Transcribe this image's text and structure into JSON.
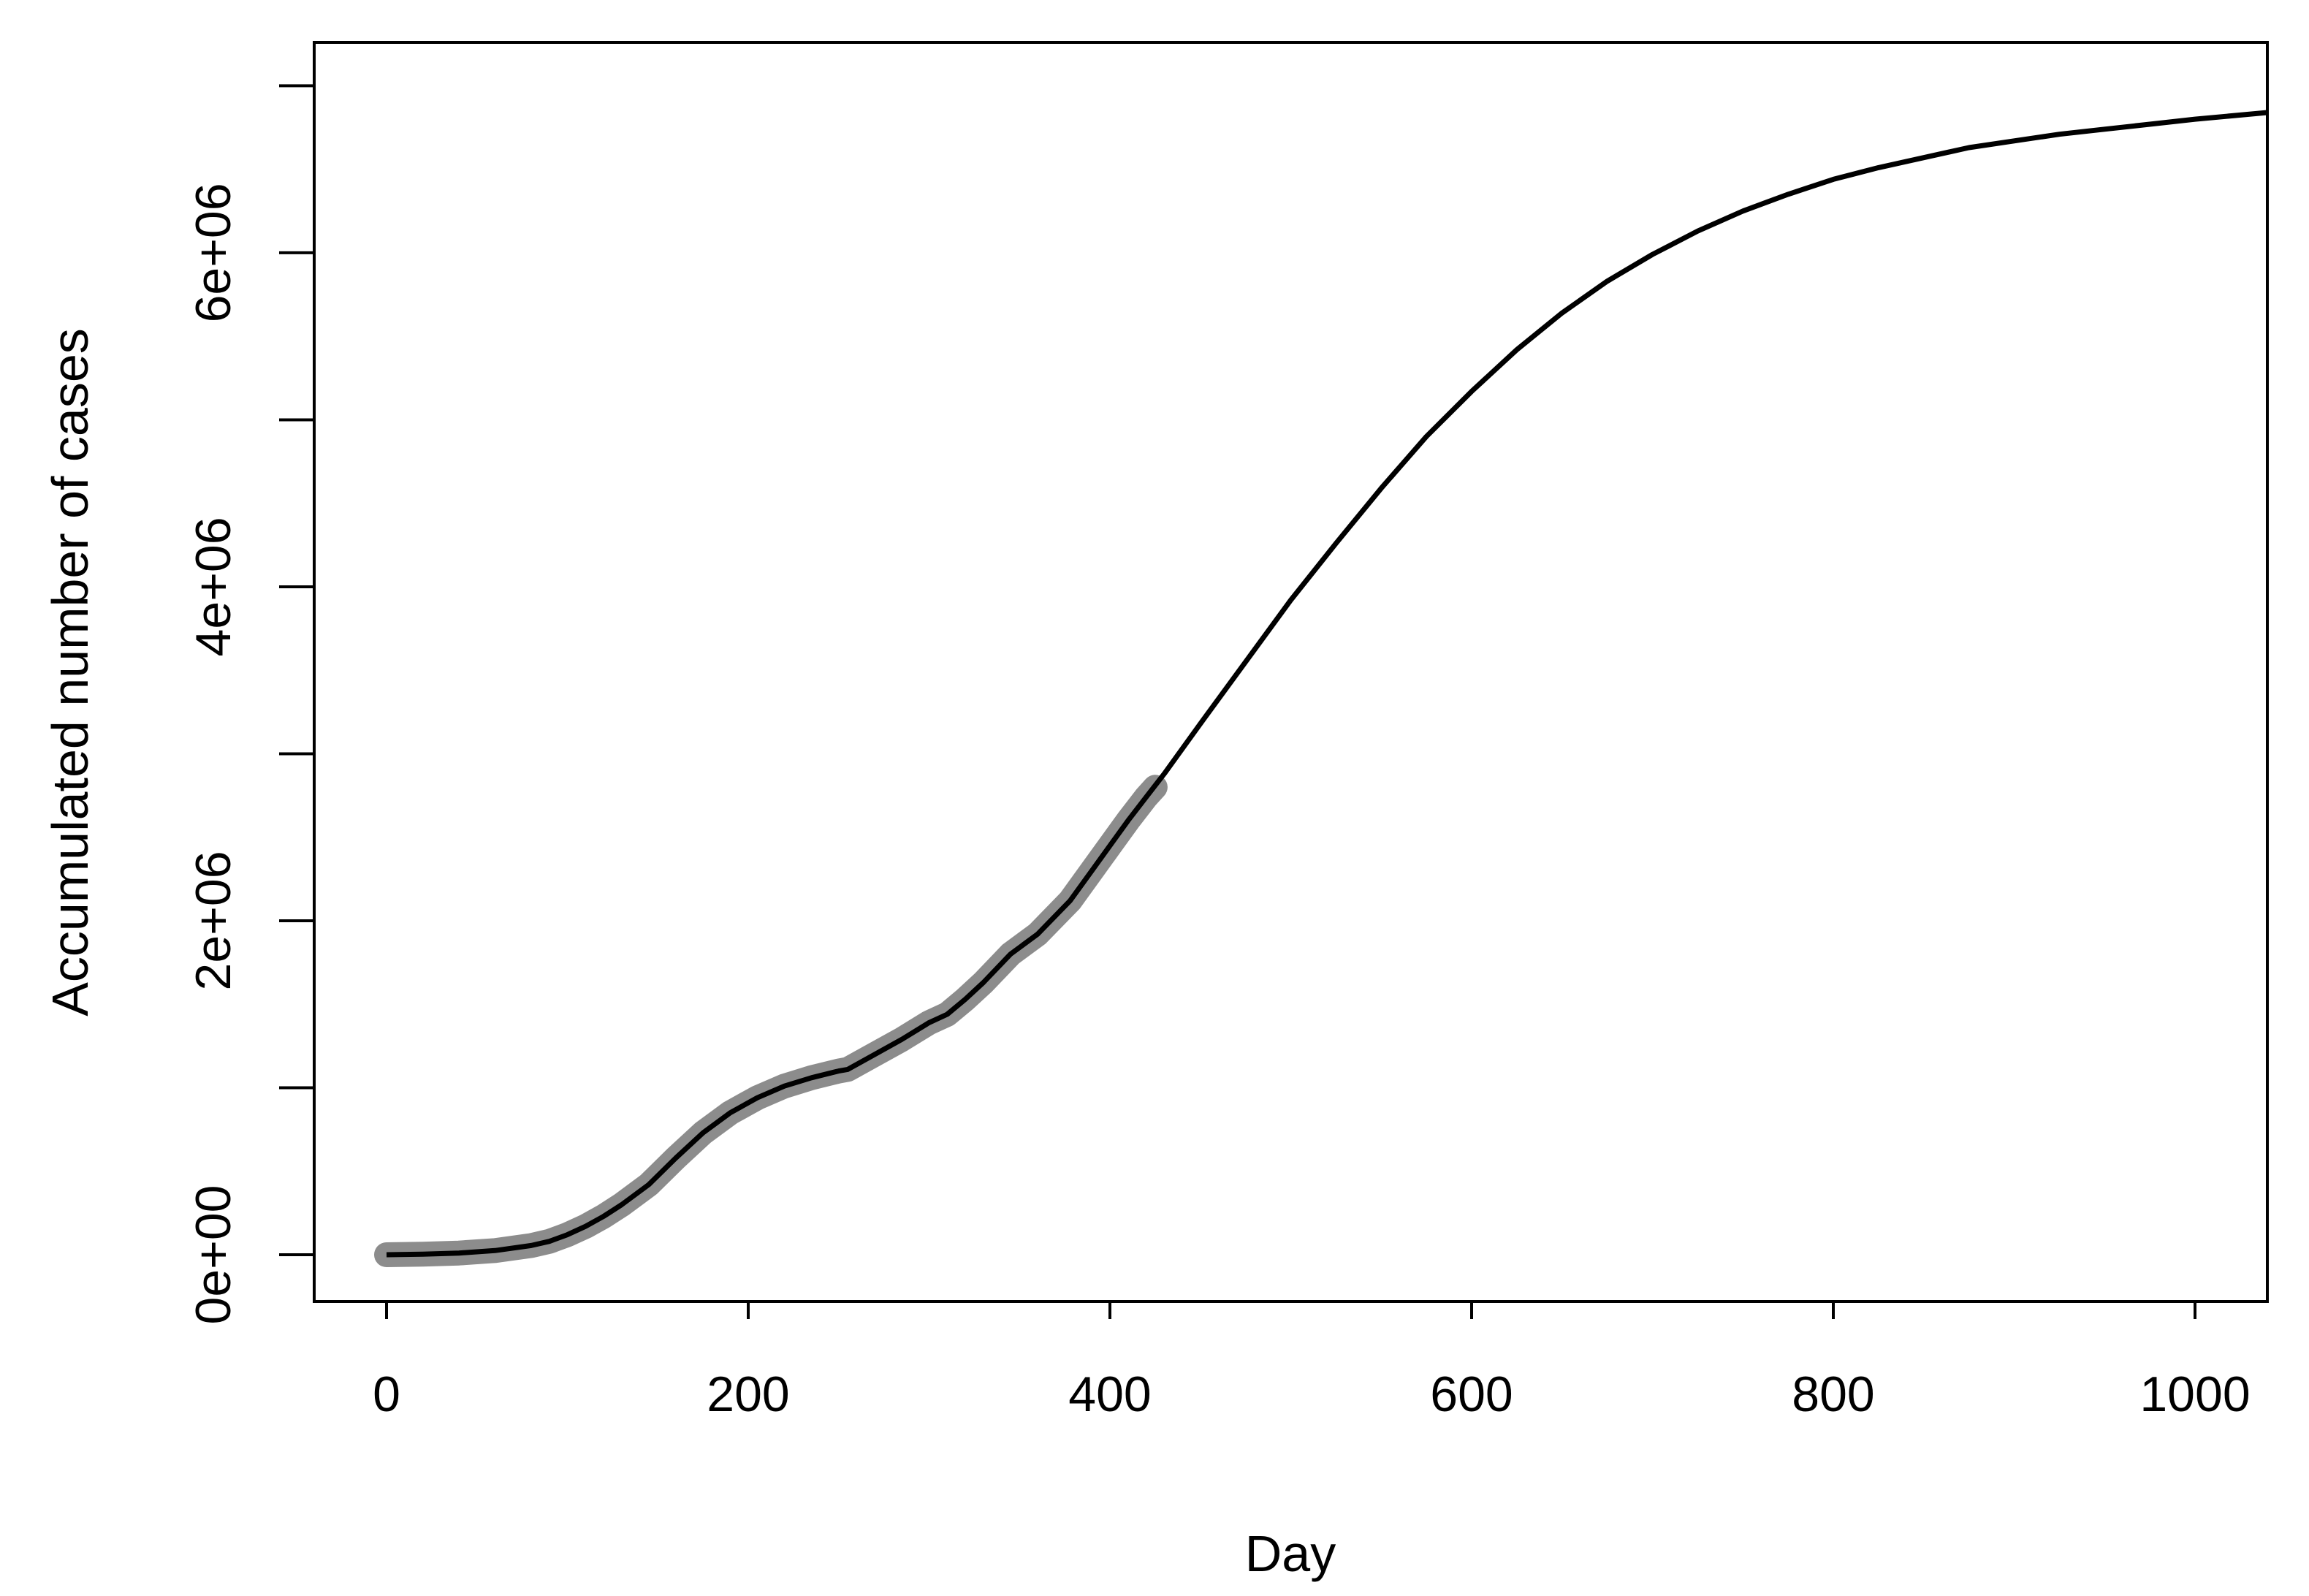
{
  "chart_data": {
    "type": "line",
    "title": "",
    "xlabel": "Day",
    "ylabel": "Accumulated number of cases",
    "xlim": [
      -40,
      1040
    ],
    "ylim": [
      -280000,
      7260000
    ],
    "x_ticks": [
      0,
      200,
      400,
      600,
      800,
      1000
    ],
    "x_tick_labels": [
      "0",
      "200",
      "400",
      "600",
      "800",
      "1000"
    ],
    "y_ticks": [
      0,
      1000000,
      2000000,
      3000000,
      4000000,
      5000000,
      6000000,
      7000000
    ],
    "y_tick_labels": [
      "0e+00",
      "",
      "2e+06",
      "",
      "4e+06",
      "",
      "6e+06",
      ""
    ],
    "grid": false,
    "legend": "none",
    "series": [
      {
        "role": "observed",
        "color": "#8c8c8c",
        "x": [
          0,
          20,
          40,
          60,
          80,
          90,
          100,
          110,
          120,
          130,
          145,
          160,
          175,
          190,
          205,
          220,
          235,
          250,
          255,
          270,
          285,
          300,
          310,
          320,
          330,
          345,
          360,
          378,
          390,
          400,
          410,
          420,
          425
        ],
        "y": [
          0,
          3000,
          10000,
          25000,
          55000,
          80000,
          120000,
          170000,
          230000,
          300000,
          420000,
          580000,
          730000,
          850000,
          940000,
          1010000,
          1060000,
          1100000,
          1110000,
          1200000,
          1290000,
          1390000,
          1440000,
          1530000,
          1630000,
          1800000,
          1920000,
          2120000,
          2300000,
          2450000,
          2600000,
          2740000,
          2800000
        ]
      },
      {
        "role": "fitted",
        "color": "#000000",
        "x": [
          0,
          20,
          40,
          60,
          80,
          90,
          100,
          110,
          120,
          130,
          145,
          160,
          175,
          190,
          205,
          220,
          235,
          250,
          255,
          270,
          285,
          300,
          310,
          320,
          330,
          345,
          360,
          378,
          390,
          400,
          410,
          420,
          430,
          450,
          475,
          500,
          525,
          550,
          575,
          600,
          625,
          650,
          675,
          700,
          725,
          750,
          775,
          800,
          825,
          850,
          875,
          900,
          925,
          950,
          975,
          1000,
          1040
        ],
        "y": [
          0,
          3000,
          10000,
          25000,
          55000,
          80000,
          120000,
          170000,
          230000,
          300000,
          420000,
          580000,
          730000,
          850000,
          940000,
          1010000,
          1060000,
          1100000,
          1110000,
          1200000,
          1290000,
          1390000,
          1440000,
          1530000,
          1630000,
          1800000,
          1920000,
          2120000,
          2300000,
          2450000,
          2600000,
          2740000,
          2880000,
          3180000,
          3550000,
          3920000,
          4260000,
          4590000,
          4900000,
          5170000,
          5420000,
          5640000,
          5830000,
          5990000,
          6130000,
          6250000,
          6350000,
          6440000,
          6510000,
          6570000,
          6630000,
          6670000,
          6710000,
          6740000,
          6770000,
          6800000,
          6840000
        ]
      }
    ]
  }
}
